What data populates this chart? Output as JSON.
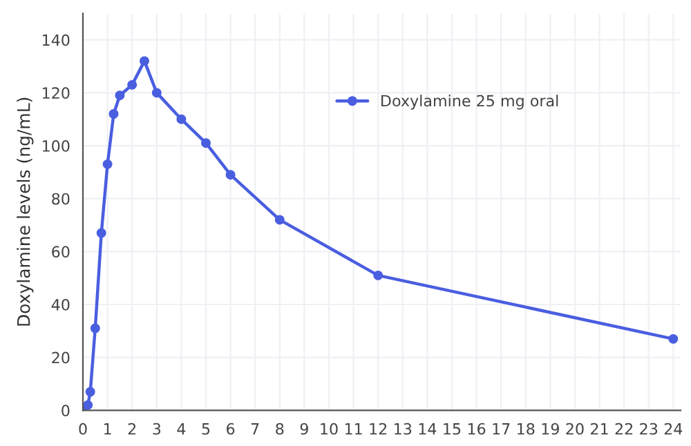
{
  "chart_data": {
    "type": "line",
    "ylabel": "Doxylamine levels (ng/mL)",
    "x": [
      0,
      0.2,
      0.3,
      0.5,
      0.75,
      1,
      1.25,
      1.5,
      2,
      2.5,
      3,
      4,
      5,
      6,
      8,
      12,
      24
    ],
    "series": [
      {
        "name": "Doxylamine 25 mg oral",
        "color": "#4a5ee0",
        "values": [
          0,
          2,
          7,
          31,
          67,
          93,
          112,
          119,
          123,
          132,
          120,
          110,
          101,
          89,
          72,
          51,
          27
        ]
      }
    ],
    "xlim": [
      0,
      24.3
    ],
    "xticks": [
      0,
      1,
      2,
      3,
      4,
      5,
      6,
      7,
      8,
      9,
      10,
      11,
      12,
      13,
      14,
      15,
      16,
      17,
      18,
      19,
      20,
      21,
      22,
      23,
      24
    ],
    "ylim": [
      0,
      150
    ],
    "yticks": [
      0,
      20,
      40,
      60,
      80,
      100,
      120,
      140
    ],
    "grid": true,
    "legend": "top right",
    "marker": "circle",
    "line_style": "solid"
  }
}
